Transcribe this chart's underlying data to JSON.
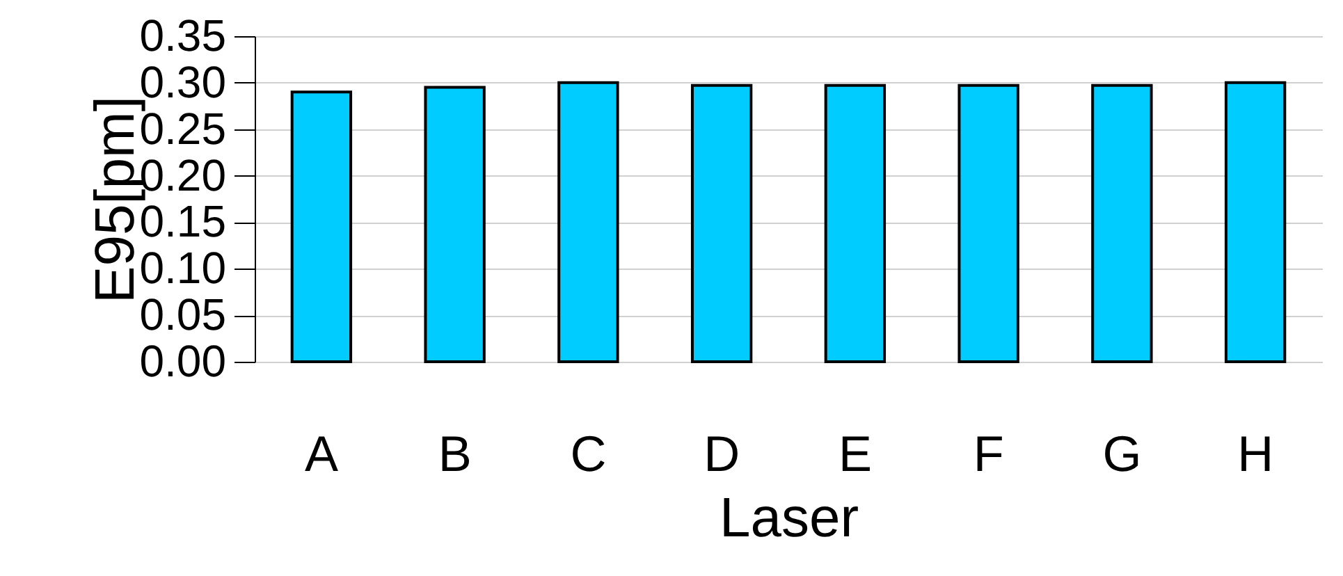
{
  "chart_data": {
    "type": "bar",
    "xlabel": "Laser",
    "ylabel": "E95[pm]",
    "categories": [
      "A",
      "B",
      "C",
      "D",
      "E",
      "F",
      "G",
      "H"
    ],
    "values": [
      0.29,
      0.295,
      0.3,
      0.297,
      0.297,
      0.297,
      0.297,
      0.3
    ],
    "color": "#00ccff",
    "ylim": [
      0,
      0.35
    ],
    "yticks": [
      {
        "value": 0,
        "label": "0.00"
      },
      {
        "value": 0.05,
        "label": "0.05"
      },
      {
        "value": 0.1,
        "label": "0.10"
      },
      {
        "value": 0.15,
        "label": "0.15"
      },
      {
        "value": 0.2,
        "label": "0.20"
      },
      {
        "value": 0.25,
        "label": "0.25"
      },
      {
        "value": 0.3,
        "label": "0.30"
      },
      {
        "value": 0.35,
        "label": "0.35"
      }
    ],
    "grid": "y"
  }
}
